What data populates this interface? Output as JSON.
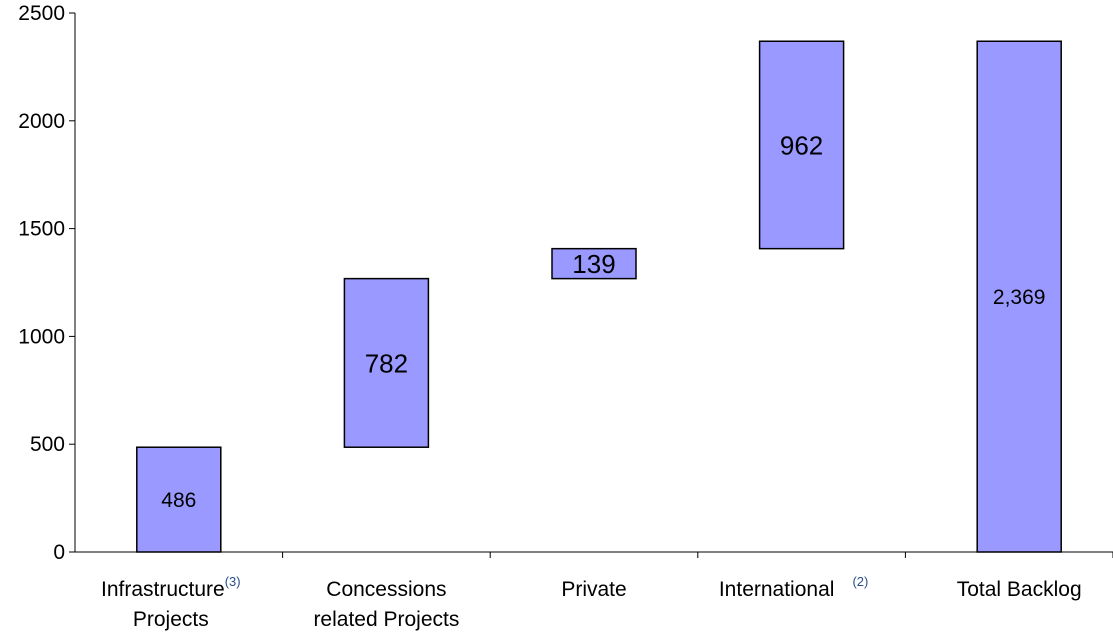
{
  "chart_data": {
    "type": "bar",
    "subtype": "waterfall",
    "ylim": [
      0,
      2500
    ],
    "yticks": [
      "0",
      "500",
      "1000",
      "1500",
      "2000",
      "2500"
    ],
    "categories": [
      {
        "lines": [
          "Infrastructure",
          "Projects"
        ],
        "sup": "(3)"
      },
      {
        "lines": [
          "Concessions",
          "related Projects"
        ],
        "sup": ""
      },
      {
        "lines": [
          "Private"
        ],
        "sup": ""
      },
      {
        "lines": [
          "International"
        ],
        "sup": "(2)"
      },
      {
        "lines": [
          "Total Backlog"
        ],
        "sup": ""
      }
    ],
    "bars": [
      {
        "base": 0,
        "top": 486,
        "label": "486"
      },
      {
        "base": 486,
        "top": 1268,
        "label": "782"
      },
      {
        "base": 1268,
        "top": 1407,
        "label": "139"
      },
      {
        "base": 1407,
        "top": 2369,
        "label": "962"
      },
      {
        "base": 0,
        "top": 2369,
        "label": "2,369"
      }
    ],
    "bar_color": "#9999ff",
    "grid": false,
    "legend": "none"
  }
}
